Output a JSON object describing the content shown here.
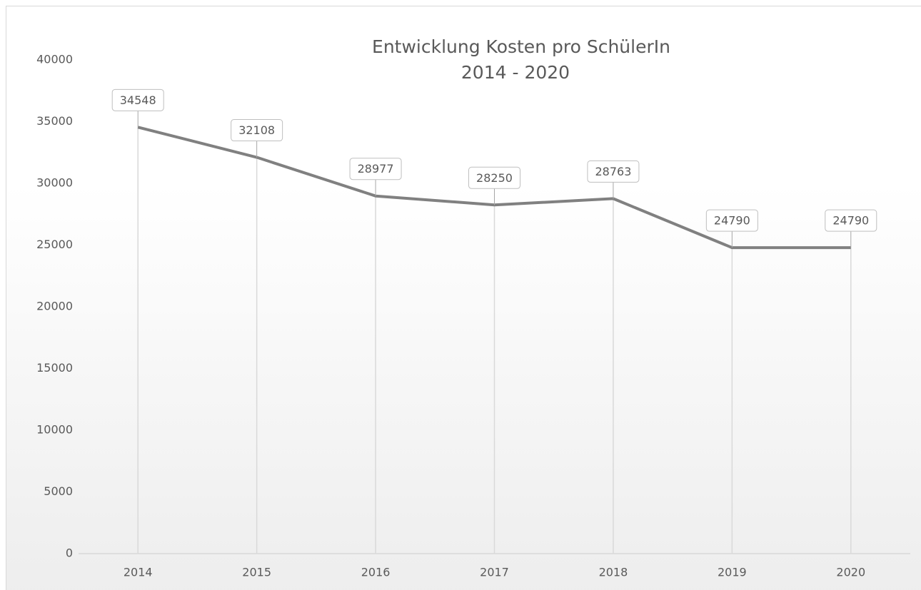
{
  "chart_data": {
    "type": "line",
    "title": [
      "Entwicklung Kosten pro SchülerIn",
      "2014 - 2020"
    ],
    "categories": [
      "2014",
      "2015",
      "2016",
      "2017",
      "2018",
      "2019",
      "2020"
    ],
    "values": [
      34548,
      32108,
      28977,
      28250,
      28763,
      24790,
      24790
    ],
    "color": "#808080",
    "ylim": [
      0,
      40000
    ],
    "yticks": [
      0,
      5000,
      10000,
      15000,
      20000,
      25000,
      30000,
      35000,
      40000
    ],
    "grid": false
  }
}
